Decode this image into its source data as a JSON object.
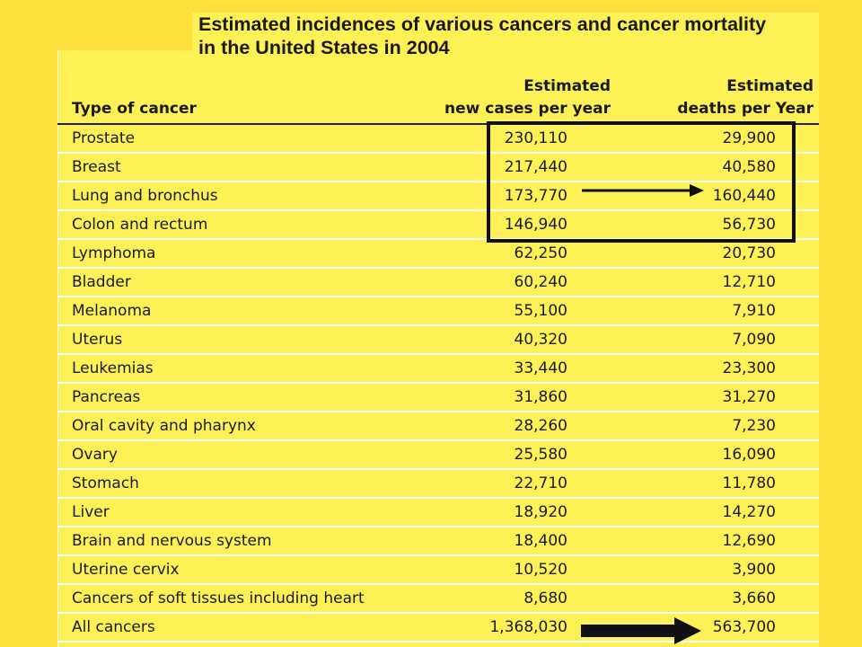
{
  "title": {
    "line1": "Estimated incidences of various cancers and cancer mortality",
    "line2": "in the United States in 2004"
  },
  "headers": {
    "type": "Type of cancer",
    "new_line1": "Estimated",
    "new_line2": "new cases per year",
    "deaths_line1": "Estimated",
    "deaths_line2": "deaths per Year"
  },
  "rows": [
    {
      "type": "Prostate",
      "new": "230,110",
      "deaths": "29,900"
    },
    {
      "type": "Breast",
      "new": "217,440",
      "deaths": "40,580"
    },
    {
      "type": "Lung and bronchus",
      "new": "173,770",
      "deaths": "160,440"
    },
    {
      "type": "Colon and rectum",
      "new": "146,940",
      "deaths": "56,730"
    },
    {
      "type": "Lymphoma",
      "new": "62,250",
      "deaths": "20,730"
    },
    {
      "type": "Bladder",
      "new": "60,240",
      "deaths": "12,710"
    },
    {
      "type": "Melanoma",
      "new": "55,100",
      "deaths": "7,910"
    },
    {
      "type": "Uterus",
      "new": "40,320",
      "deaths": "7,090"
    },
    {
      "type": "Leukemias",
      "new": "33,440",
      "deaths": "23,300"
    },
    {
      "type": "Pancreas",
      "new": "31,860",
      "deaths": "31,270"
    },
    {
      "type": "Oral cavity and pharynx",
      "new": "28,260",
      "deaths": "7,230"
    },
    {
      "type": "Ovary",
      "new": "25,580",
      "deaths": "16,090"
    },
    {
      "type": "Stomach",
      "new": "22,710",
      "deaths": "11,780"
    },
    {
      "type": "Liver",
      "new": "18,920",
      "deaths": "14,270"
    },
    {
      "type": "Brain and nervous system",
      "new": "18,400",
      "deaths": "12,690"
    },
    {
      "type": "Uterine cervix",
      "new": "10,520",
      "deaths": "3,900"
    },
    {
      "type": "Cancers of soft tissues including heart",
      "new": "8,680",
      "deaths": "3,660"
    },
    {
      "type": "All cancers",
      "new": "1,368,030",
      "deaths": "563,700"
    }
  ],
  "colors": {
    "background": "#FFE03D",
    "table_background": "#FEF155",
    "row_divider": "#FFFFFF",
    "text": "#1A1A1A"
  },
  "annotations": [
    "highlight-box-top-four",
    "arrow-lung-and-bronchus",
    "arrow-all-cancers"
  ]
}
